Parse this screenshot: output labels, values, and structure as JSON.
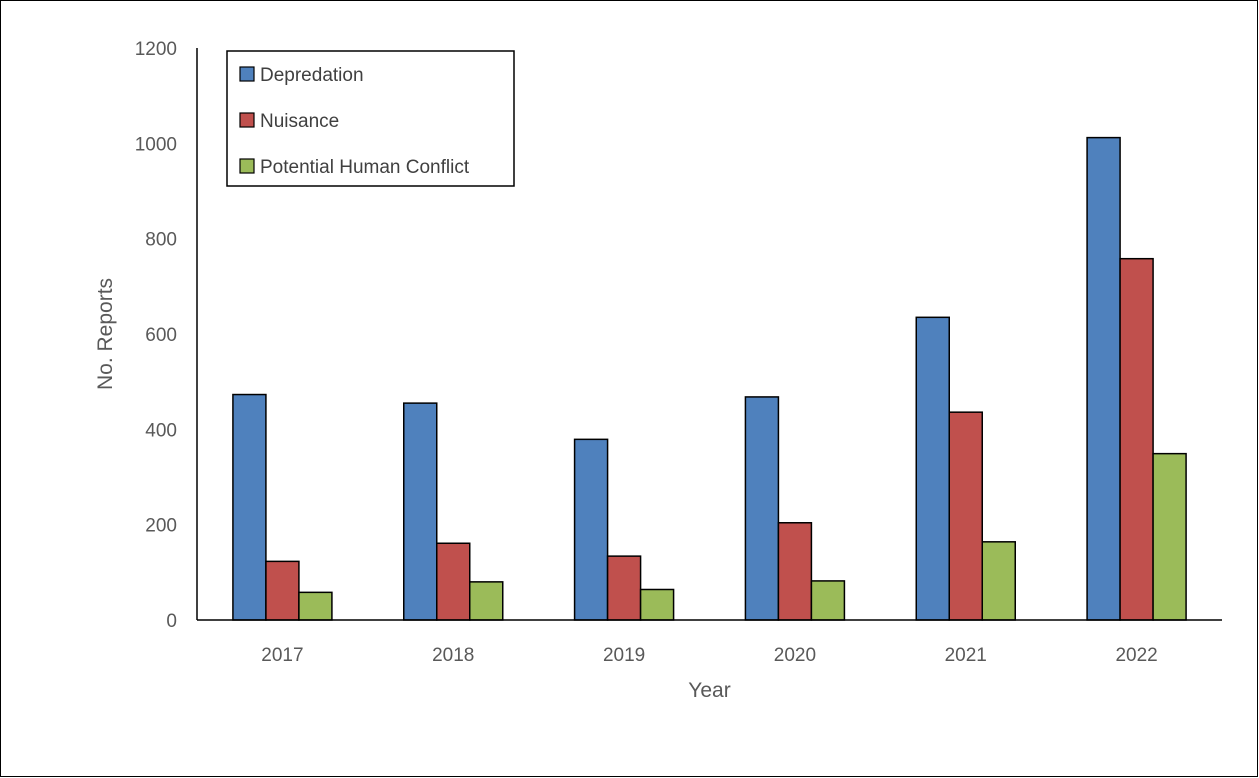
{
  "chart_data": {
    "type": "bar",
    "categories": [
      "2017",
      "2018",
      "2019",
      "2020",
      "2021",
      "2022"
    ],
    "series": [
      {
        "name": "Depredation",
        "color": "#4f81bd",
        "values": [
          473,
          455,
          379,
          468,
          635,
          1012
        ]
      },
      {
        "name": "Nuisance",
        "color": "#c0504d",
        "values": [
          123,
          161,
          134,
          204,
          436,
          758
        ]
      },
      {
        "name": "Potential Human Conflict",
        "color": "#9bbb59",
        "values": [
          58,
          80,
          64,
          82,
          164,
          349
        ]
      }
    ],
    "xlabel": "Year",
    "ylabel": "No. Reports",
    "ylim": [
      0,
      1200
    ],
    "yticks": [
      "0",
      "200",
      "400",
      "600",
      "800",
      "1000",
      "1200"
    ],
    "grid": false,
    "legend_position": "top-left"
  }
}
